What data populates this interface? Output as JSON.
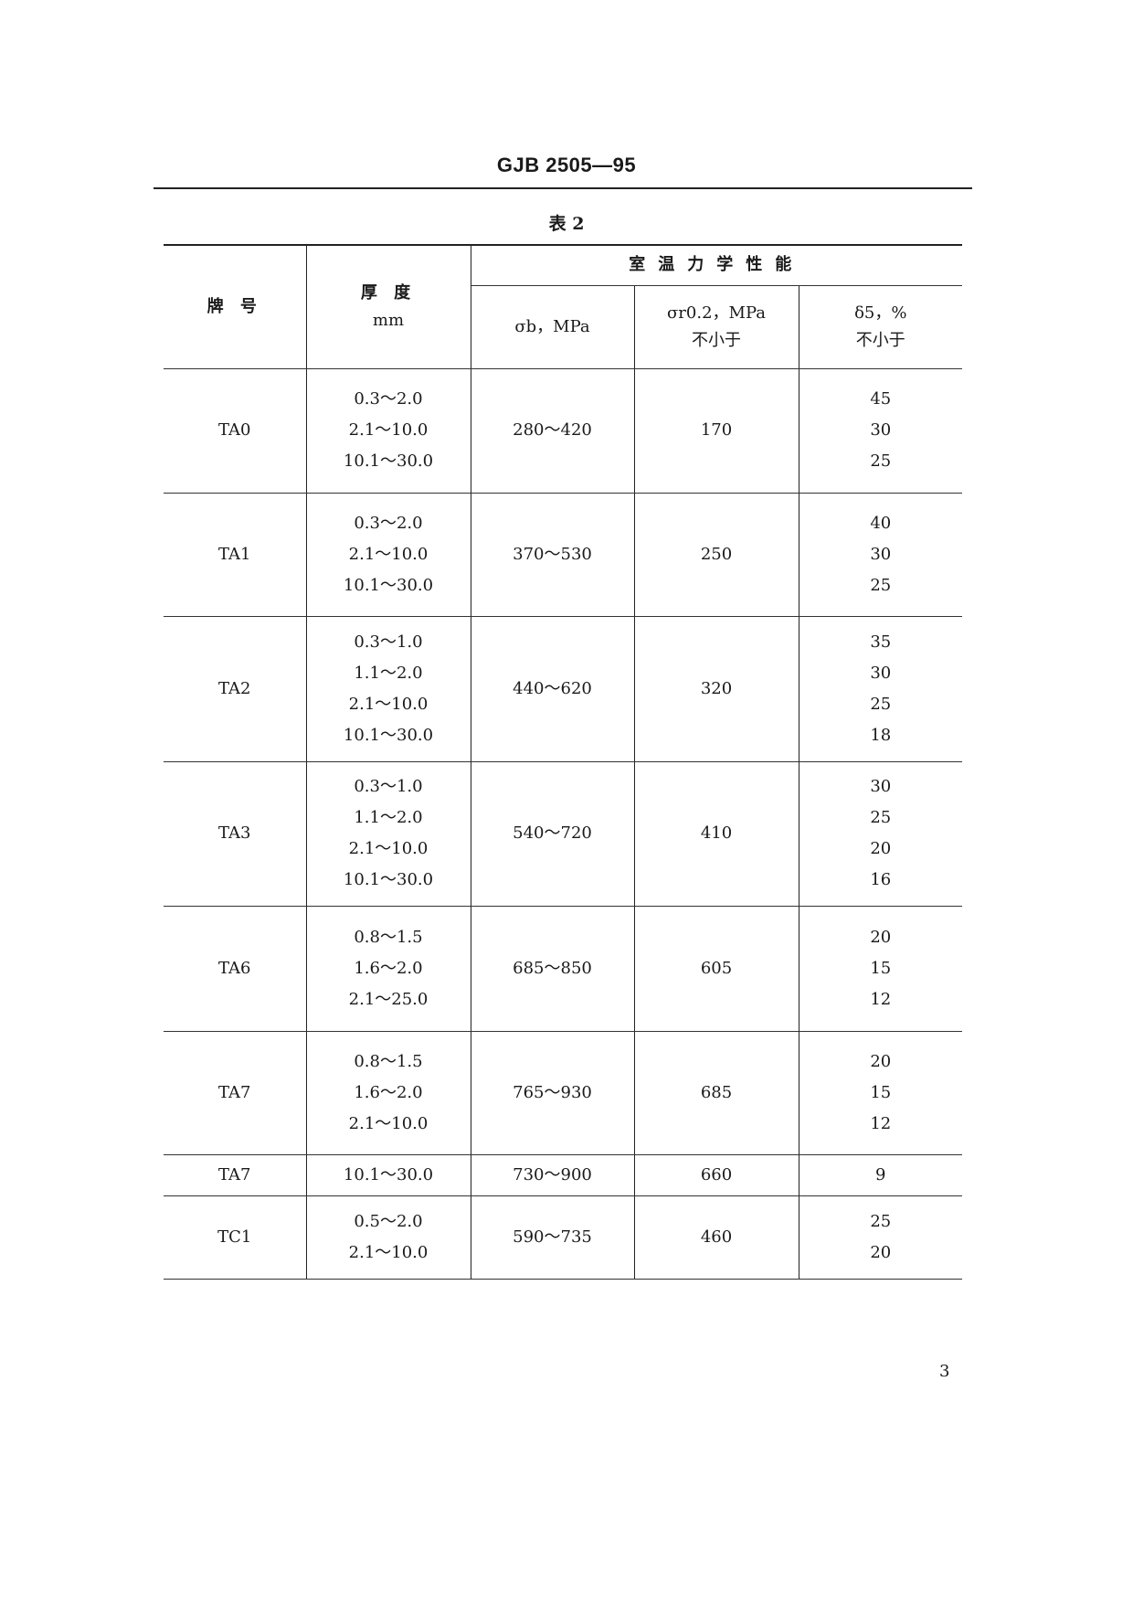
{
  "header": {
    "doc_id": "GJB 2505—95"
  },
  "table": {
    "caption": "表 2",
    "columns": {
      "grade": "牌 号",
      "thickness": "厚 度",
      "thickness_unit": "mm",
      "group": "室温力学性能",
      "tensile": "σb，MPa",
      "yield": "σr0.2，MPa",
      "yield_note": "不小于",
      "elongation": "δ5，%",
      "elongation_note": "不小于"
    },
    "rows": [
      {
        "grade": "TA0",
        "thickness": [
          "0.3～2.0",
          "2.1～10.0",
          "10.1～30.0"
        ],
        "tensile": "280～420",
        "yield": "170",
        "elongation": [
          "45",
          "30",
          "25"
        ]
      },
      {
        "grade": "TA1",
        "thickness": [
          "0.3～2.0",
          "2.1～10.0",
          "10.1～30.0"
        ],
        "tensile": "370～530",
        "yield": "250",
        "elongation": [
          "40",
          "30",
          "25"
        ]
      },
      {
        "grade": "TA2",
        "thickness": [
          "0.3～1.0",
          "1.1～2.0",
          "2.1～10.0",
          "10.1～30.0"
        ],
        "tensile": "440～620",
        "yield": "320",
        "elongation": [
          "35",
          "30",
          "25",
          "18"
        ]
      },
      {
        "grade": "TA3",
        "thickness": [
          "0.3～1.0",
          "1.1～2.0",
          "2.1～10.0",
          "10.1～30.0"
        ],
        "tensile": "540～720",
        "yield": "410",
        "elongation": [
          "30",
          "25",
          "20",
          "16"
        ]
      },
      {
        "grade": "TA6",
        "thickness": [
          "0.8～1.5",
          "1.6～2.0",
          "2.1～25.0"
        ],
        "tensile": "685～850",
        "yield": "605",
        "elongation": [
          "20",
          "15",
          "12"
        ]
      },
      {
        "grade": "TA7",
        "thickness": [
          "0.8～1.5",
          "1.6～2.0",
          "2.1～10.0"
        ],
        "tensile": "765～930",
        "yield": "685",
        "elongation": [
          "20",
          "15",
          "12"
        ]
      },
      {
        "grade": "TA7",
        "thickness": [
          "10.1～30.0"
        ],
        "tensile": "730～900",
        "yield": "660",
        "elongation": [
          "9"
        ]
      },
      {
        "grade": "TC1",
        "thickness": [
          "0.5～2.0",
          "2.1～10.0"
        ],
        "tensile": "590～735",
        "yield": "460",
        "elongation": [
          "25",
          "20"
        ]
      }
    ]
  },
  "footer": {
    "page_number": "3"
  }
}
